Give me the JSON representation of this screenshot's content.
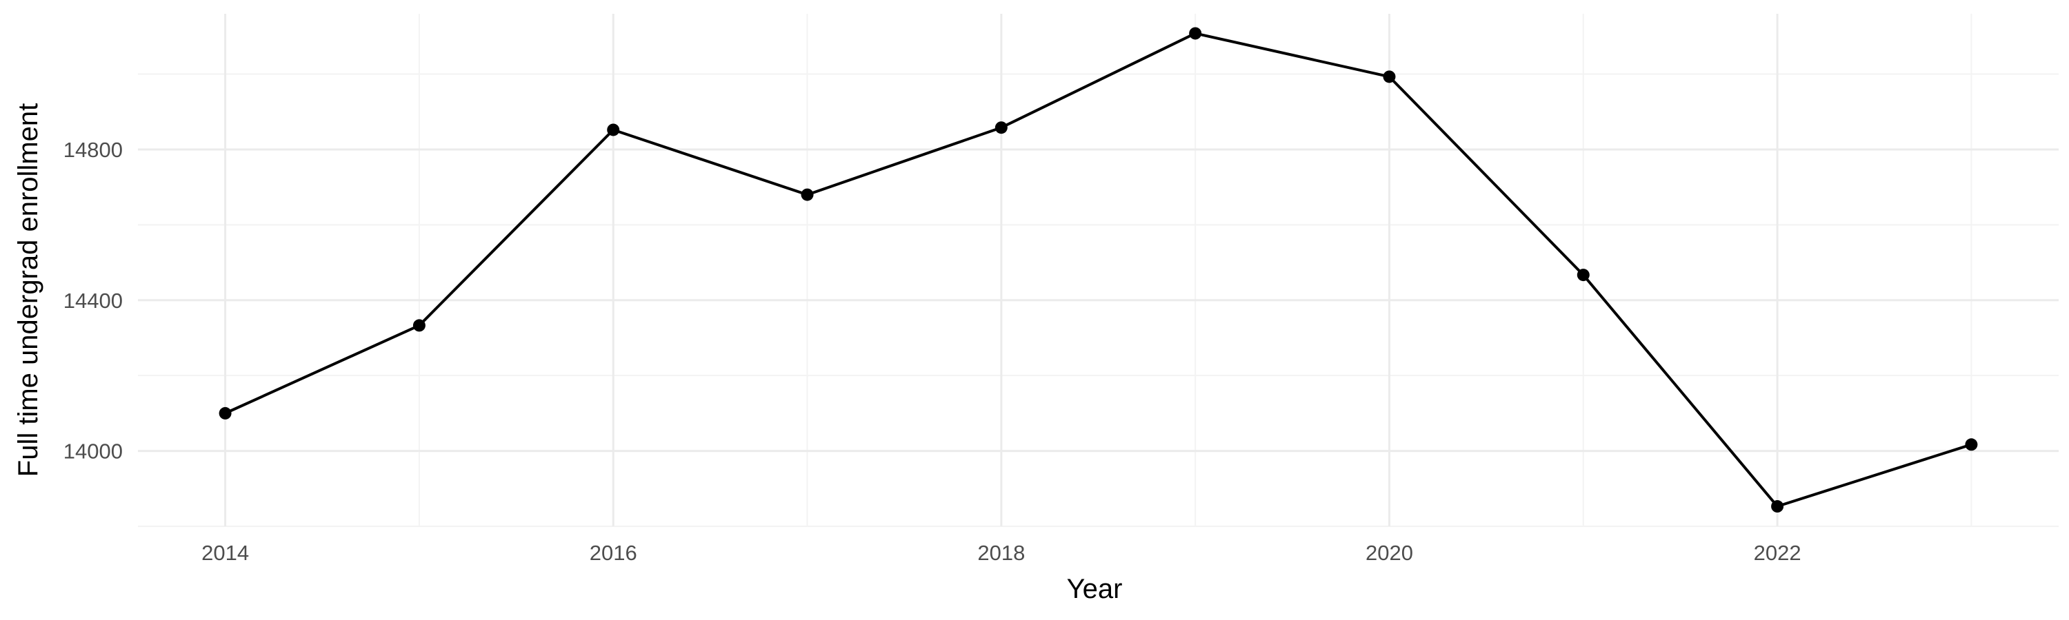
{
  "chart_data": {
    "type": "line",
    "title": "",
    "xlabel": "Year",
    "ylabel": "Full time undergrad enrollment",
    "x": [
      2014,
      2015,
      2016,
      2017,
      2018,
      2019,
      2020,
      2021,
      2022,
      2023
    ],
    "series": [
      {
        "name": "",
        "values": [
          14100,
          14333,
          14852,
          14680,
          14858,
          15108,
          14993,
          14467,
          13853,
          14017
        ],
        "color": "#000000"
      }
    ],
    "xlim": [
      2013.55,
      2023.45
    ],
    "ylim": [
      13800,
      15160
    ],
    "x_ticks": [
      2014,
      2016,
      2018,
      2020,
      2022
    ],
    "x_tick_labels": [
      "2014",
      "2016",
      "2018",
      "2020",
      "2022"
    ],
    "x_minor_ticks": [
      2015,
      2017,
      2019,
      2021,
      2023
    ],
    "y_ticks": [
      14000,
      14400,
      14800
    ],
    "y_tick_labels": [
      "14000",
      "14400",
      "14800"
    ],
    "y_minor_ticks": [
      13800,
      14200,
      14600,
      15000
    ],
    "grid": true,
    "legend": "none",
    "background": "#ffffff",
    "grid_color": "#ebebeb"
  }
}
